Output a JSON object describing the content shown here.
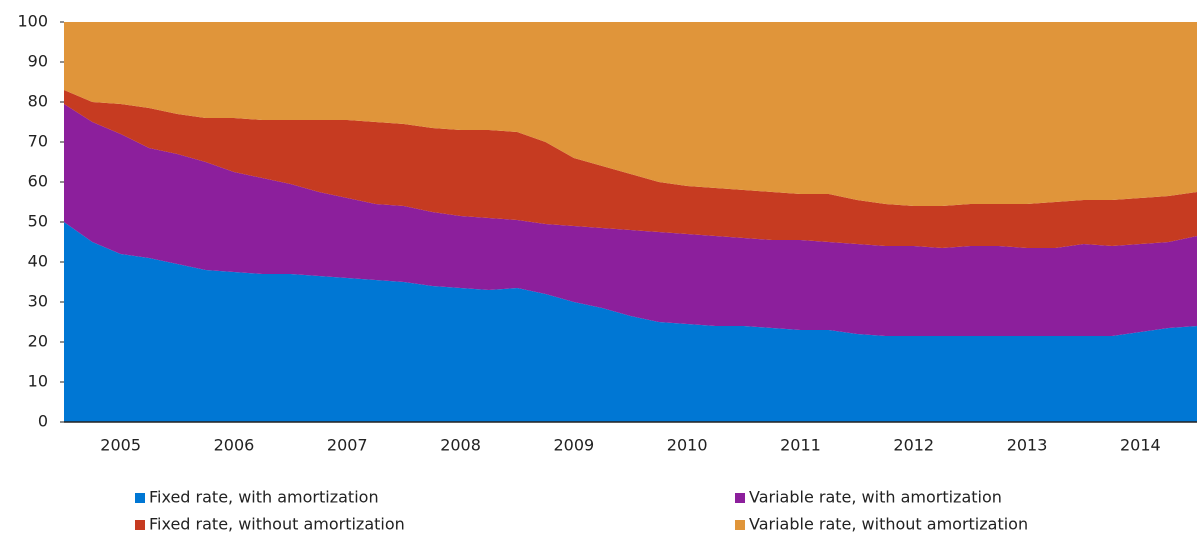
{
  "chart_data": {
    "type": "stacked-area",
    "categories": [
      null,
      null,
      "2005",
      null,
      null,
      null,
      "2006",
      null,
      null,
      null,
      "2007",
      null,
      null,
      null,
      "2008",
      null,
      null,
      null,
      "2009",
      null,
      null,
      null,
      "2010",
      null,
      null,
      null,
      "2011",
      null,
      null,
      null,
      "2012",
      null,
      null,
      null,
      "2013",
      null,
      null,
      null,
      "2014",
      null,
      null
    ],
    "series": [
      {
        "name": "Fixed rate, with amortization",
        "color": "#0077d4",
        "values": [
          50,
          45,
          42,
          41,
          39.5,
          38,
          37.5,
          37,
          37,
          36.5,
          36,
          35.5,
          35,
          34,
          33.5,
          33,
          33.5,
          32,
          30,
          28.5,
          26.5,
          25,
          24.5,
          24,
          24,
          23.5,
          23,
          23,
          22,
          21.5,
          21.5,
          21.5,
          21.5,
          21.5,
          21.5,
          21.5,
          21.5,
          21.5,
          22.5,
          23.5,
          24
        ]
      },
      {
        "name": "Variable rate, with amortization",
        "color": "#8c1f9c",
        "values": [
          29.5,
          30,
          30,
          27.5,
          27.5,
          27,
          25,
          24,
          22.5,
          21,
          20,
          19,
          19,
          18.5,
          18,
          18,
          17,
          17.5,
          19,
          20,
          21.5,
          22.5,
          22.5,
          22.5,
          22,
          22,
          22.5,
          22,
          22.5,
          22.5,
          22.5,
          22,
          22.5,
          22.5,
          22,
          22,
          23,
          22.5,
          22,
          21.5,
          22.5
        ]
      },
      {
        "name": "Fixed rate, without amortization",
        "color": "#c63b21",
        "values": [
          3.5,
          5,
          7.5,
          10,
          10,
          11,
          13.5,
          14.5,
          16,
          18,
          19.5,
          20.5,
          20.5,
          21,
          21.5,
          22,
          22,
          20.5,
          17,
          15.5,
          14,
          12.5,
          12,
          12,
          12,
          12,
          11.5,
          12,
          11,
          10.5,
          10,
          10.5,
          10.5,
          10.5,
          11,
          11.5,
          11,
          11.5,
          11.5,
          11.5,
          11
        ]
      },
      {
        "name": "Variable rate, without amortization",
        "color": "#e0953a",
        "values": [
          17,
          20,
          20.5,
          21.5,
          23,
          24,
          24,
          24.5,
          24.5,
          24.5,
          24.5,
          25,
          25.5,
          26.5,
          27,
          27,
          27.5,
          30,
          34,
          36,
          38,
          40,
          41,
          41.5,
          42,
          42.5,
          43,
          43,
          44.5,
          45.5,
          46,
          46,
          45.5,
          45.5,
          45.5,
          45,
          44.5,
          44.5,
          44,
          43.5,
          42.5
        ]
      }
    ],
    "ylim": [
      0,
      100
    ],
    "yticks": [
      0,
      10,
      20,
      30,
      40,
      50,
      60,
      70,
      80,
      90,
      100
    ],
    "grid": false
  }
}
